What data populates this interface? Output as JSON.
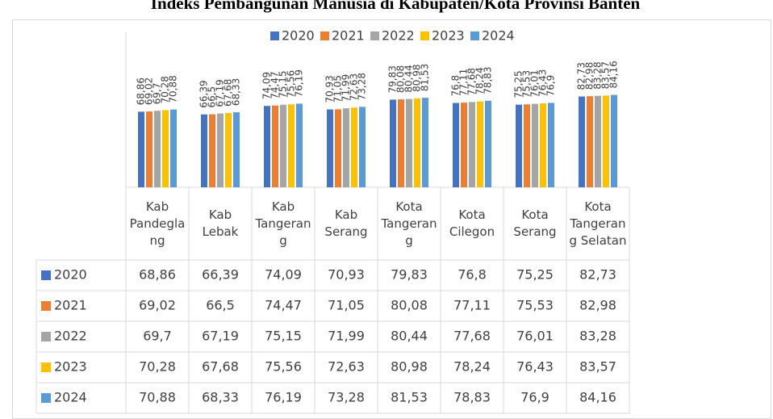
{
  "chart_data": {
    "type": "bar",
    "title": "Indeks Pembangunan Manusia di Kabupaten/Kota Provinsi Banten",
    "categories": [
      "Kab Pandeglang",
      "Kab Lebak",
      "Kab Tangerang",
      "Kab Serang",
      "Kota Tangerang",
      "Kota Cilegon",
      "Kota Serang",
      "Kota Tangerang Selatan"
    ],
    "series": [
      {
        "name": "2020",
        "color": "#4472c4",
        "values": [
          68.86,
          66.39,
          74.09,
          70.93,
          79.83,
          76.8,
          75.25,
          82.73
        ],
        "value_labels": [
          "68,86",
          "66,39",
          "74,09",
          "70,93",
          "79,83",
          "76,8",
          "75,25",
          "82,73"
        ]
      },
      {
        "name": "2021",
        "color": "#ed7d31",
        "values": [
          69.02,
          66.5,
          74.47,
          71.05,
          80.08,
          77.11,
          75.53,
          82.98
        ],
        "value_labels": [
          "69,02",
          "66,5",
          "74,47",
          "71,05",
          "80,08",
          "77,11",
          "75,53",
          "82,98"
        ]
      },
      {
        "name": "2022",
        "color": "#a5a5a5",
        "values": [
          69.7,
          67.19,
          75.15,
          71.99,
          80.44,
          77.68,
          76.01,
          83.28
        ],
        "value_labels": [
          "69,7",
          "67,19",
          "75,15",
          "71,99",
          "80,44",
          "77,68",
          "76,01",
          "83,28"
        ]
      },
      {
        "name": "2023",
        "color": "#ffc000",
        "values": [
          70.28,
          67.68,
          75.56,
          72.63,
          80.98,
          78.24,
          76.43,
          83.57
        ],
        "value_labels": [
          "70,28",
          "67,68",
          "75,56",
          "72,63",
          "80,98",
          "78,24",
          "76,43",
          "83,57"
        ]
      },
      {
        "name": "2024",
        "color": "#5b9bd5",
        "values": [
          70.88,
          68.33,
          76.19,
          73.28,
          81.53,
          78.83,
          76.9,
          84.16
        ],
        "value_labels": [
          "70,88",
          "68,33",
          "76,19",
          "73,28",
          "81,53",
          "78,83",
          "76,9",
          "84,16"
        ]
      }
    ],
    "ylim": [
      0,
      100
    ]
  }
}
